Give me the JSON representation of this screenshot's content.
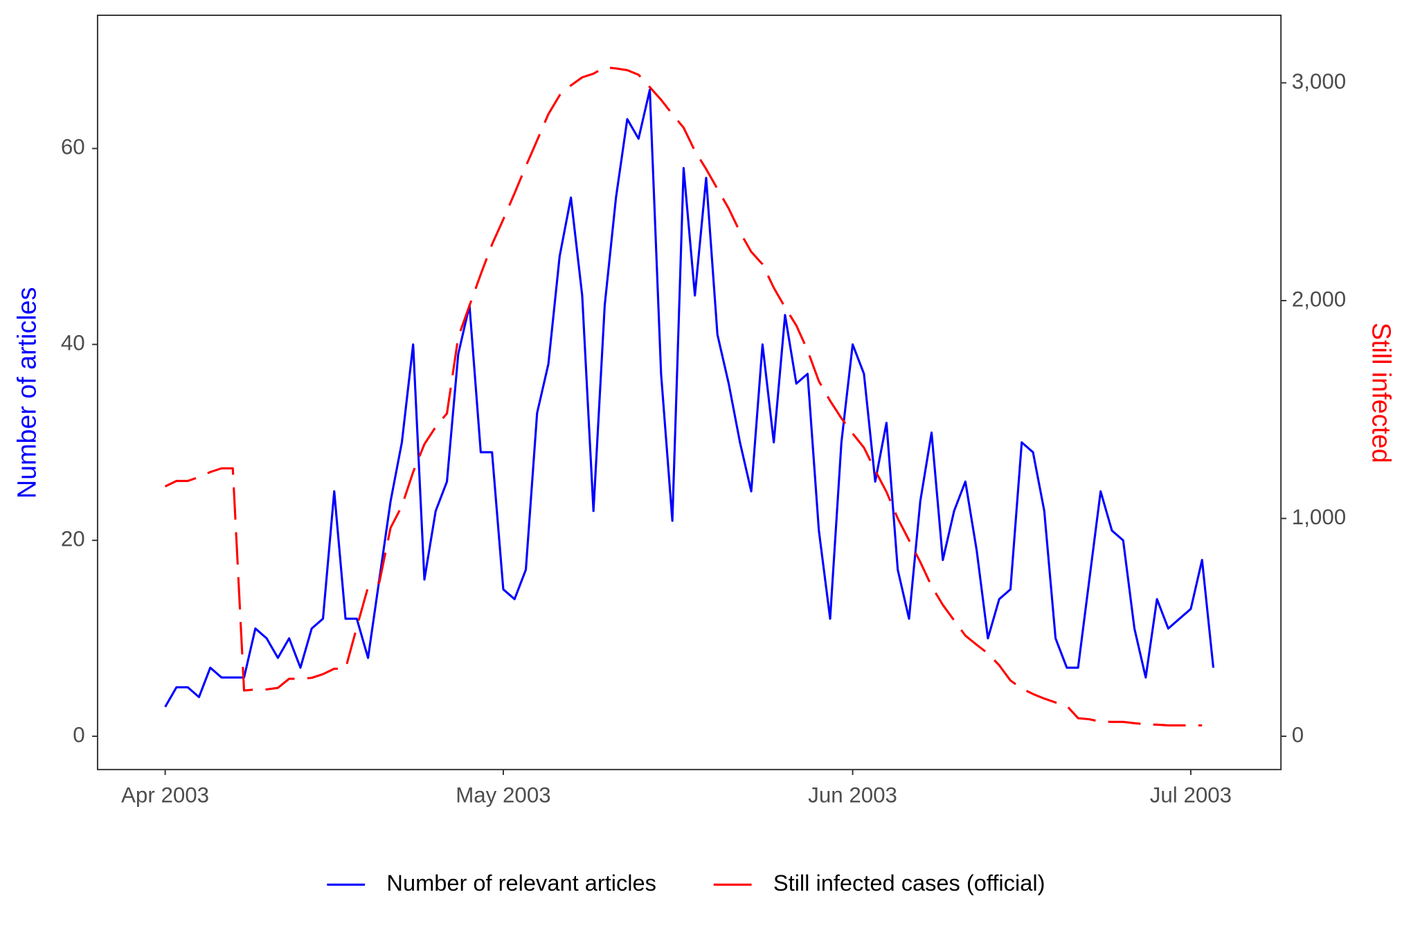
{
  "chart_data": {
    "type": "line",
    "ylabel": "Number of articles",
    "y2label": "Still infected",
    "x": [
      0,
      1,
      2,
      3,
      4,
      5,
      6,
      7,
      8,
      9,
      10,
      11,
      12,
      13,
      14,
      15,
      16,
      17,
      18,
      19,
      20,
      21,
      22,
      23,
      24,
      25,
      26,
      27,
      28,
      29,
      30,
      31,
      32,
      33,
      34,
      35,
      36,
      37,
      38,
      39,
      40,
      41,
      42,
      43,
      44,
      45,
      46,
      47,
      48,
      49,
      50,
      51,
      52,
      53,
      54,
      55,
      56,
      57,
      58,
      59,
      60,
      61,
      62,
      63,
      64,
      65,
      66,
      67,
      68,
      69,
      70,
      71,
      72,
      73,
      74,
      75,
      76,
      77,
      78,
      79,
      80,
      81,
      82,
      83,
      84,
      85,
      86,
      87,
      88,
      89,
      90,
      91,
      92,
      93
    ],
    "xlim": [
      -6,
      99
    ],
    "xticks": [
      {
        "value": 0,
        "label": "Apr 2003"
      },
      {
        "value": 30,
        "label": "May 2003"
      },
      {
        "value": 61,
        "label": "Jun 2003"
      },
      {
        "value": 91,
        "label": "Jul 2003"
      }
    ],
    "ylim": [
      -3.4,
      73.6
    ],
    "yticks": [
      0,
      20,
      40,
      60
    ],
    "y2lim": [
      -153,
      3310
    ],
    "y2ticks": [
      0,
      {
        "value": 1000,
        "label": "1,000"
      },
      {
        "value": 2000,
        "label": "2,000"
      },
      {
        "value": 3000,
        "label": "3,000"
      }
    ],
    "legend": "bottom",
    "series": [
      {
        "name": "Number of relevant articles",
        "color": "#0000ff",
        "linestyle": "solid",
        "values": [
          3,
          5,
          5,
          4,
          7,
          6,
          6,
          6,
          11,
          10,
          8,
          10,
          7,
          11,
          12,
          25,
          12,
          12,
          8,
          16,
          24,
          30,
          40,
          16,
          23,
          26,
          39,
          44,
          29,
          29,
          15,
          14,
          17,
          33,
          38,
          49,
          55,
          45,
          23,
          44,
          55,
          63,
          61,
          66,
          37,
          22,
          58,
          45,
          57,
          41,
          36,
          30,
          25,
          40,
          30,
          43,
          36,
          37,
          21,
          12,
          30,
          40,
          37,
          26,
          32,
          17,
          12,
          24,
          31,
          18,
          23,
          26,
          19,
          10,
          14,
          15,
          30,
          29,
          23,
          10,
          7,
          7,
          16,
          25,
          21,
          20,
          11,
          6,
          14,
          11,
          12,
          13,
          18,
          7
        ]
      },
      {
        "name": "Still infected cases (official)",
        "color": "#ff0000",
        "linestyle": "longdash",
        "axis": "y2",
        "values": [
          1147,
          1172,
          1172,
          1190,
          1213,
          1230,
          1230,
          210,
          215,
          215,
          222,
          264,
          264,
          268,
          285,
          310,
          310,
          500,
          685,
          706,
          957,
          1057,
          1213,
          1341,
          1420,
          1482,
          1832,
          1977,
          2121,
          2258,
          2373,
          2493,
          2617,
          2736,
          2856,
          2943,
          2988,
          3025,
          3042,
          3071,
          3066,
          3058,
          3037,
          2980,
          2922,
          2856,
          2794,
          2687,
          2604,
          2513,
          2423,
          2315,
          2224,
          2167,
          2059,
          1969,
          1886,
          1771,
          1630,
          1540,
          1460,
          1390,
          1325,
          1220,
          1122,
          1000,
          900,
          800,
          689,
          603,
          532,
          462,
          420,
          380,
          326,
          256,
          219,
          194,
          173,
          155,
          140,
          83,
          78,
          67,
          66,
          66,
          60,
          55,
          53,
          50,
          50,
          50,
          50,
          null
        ]
      }
    ]
  }
}
